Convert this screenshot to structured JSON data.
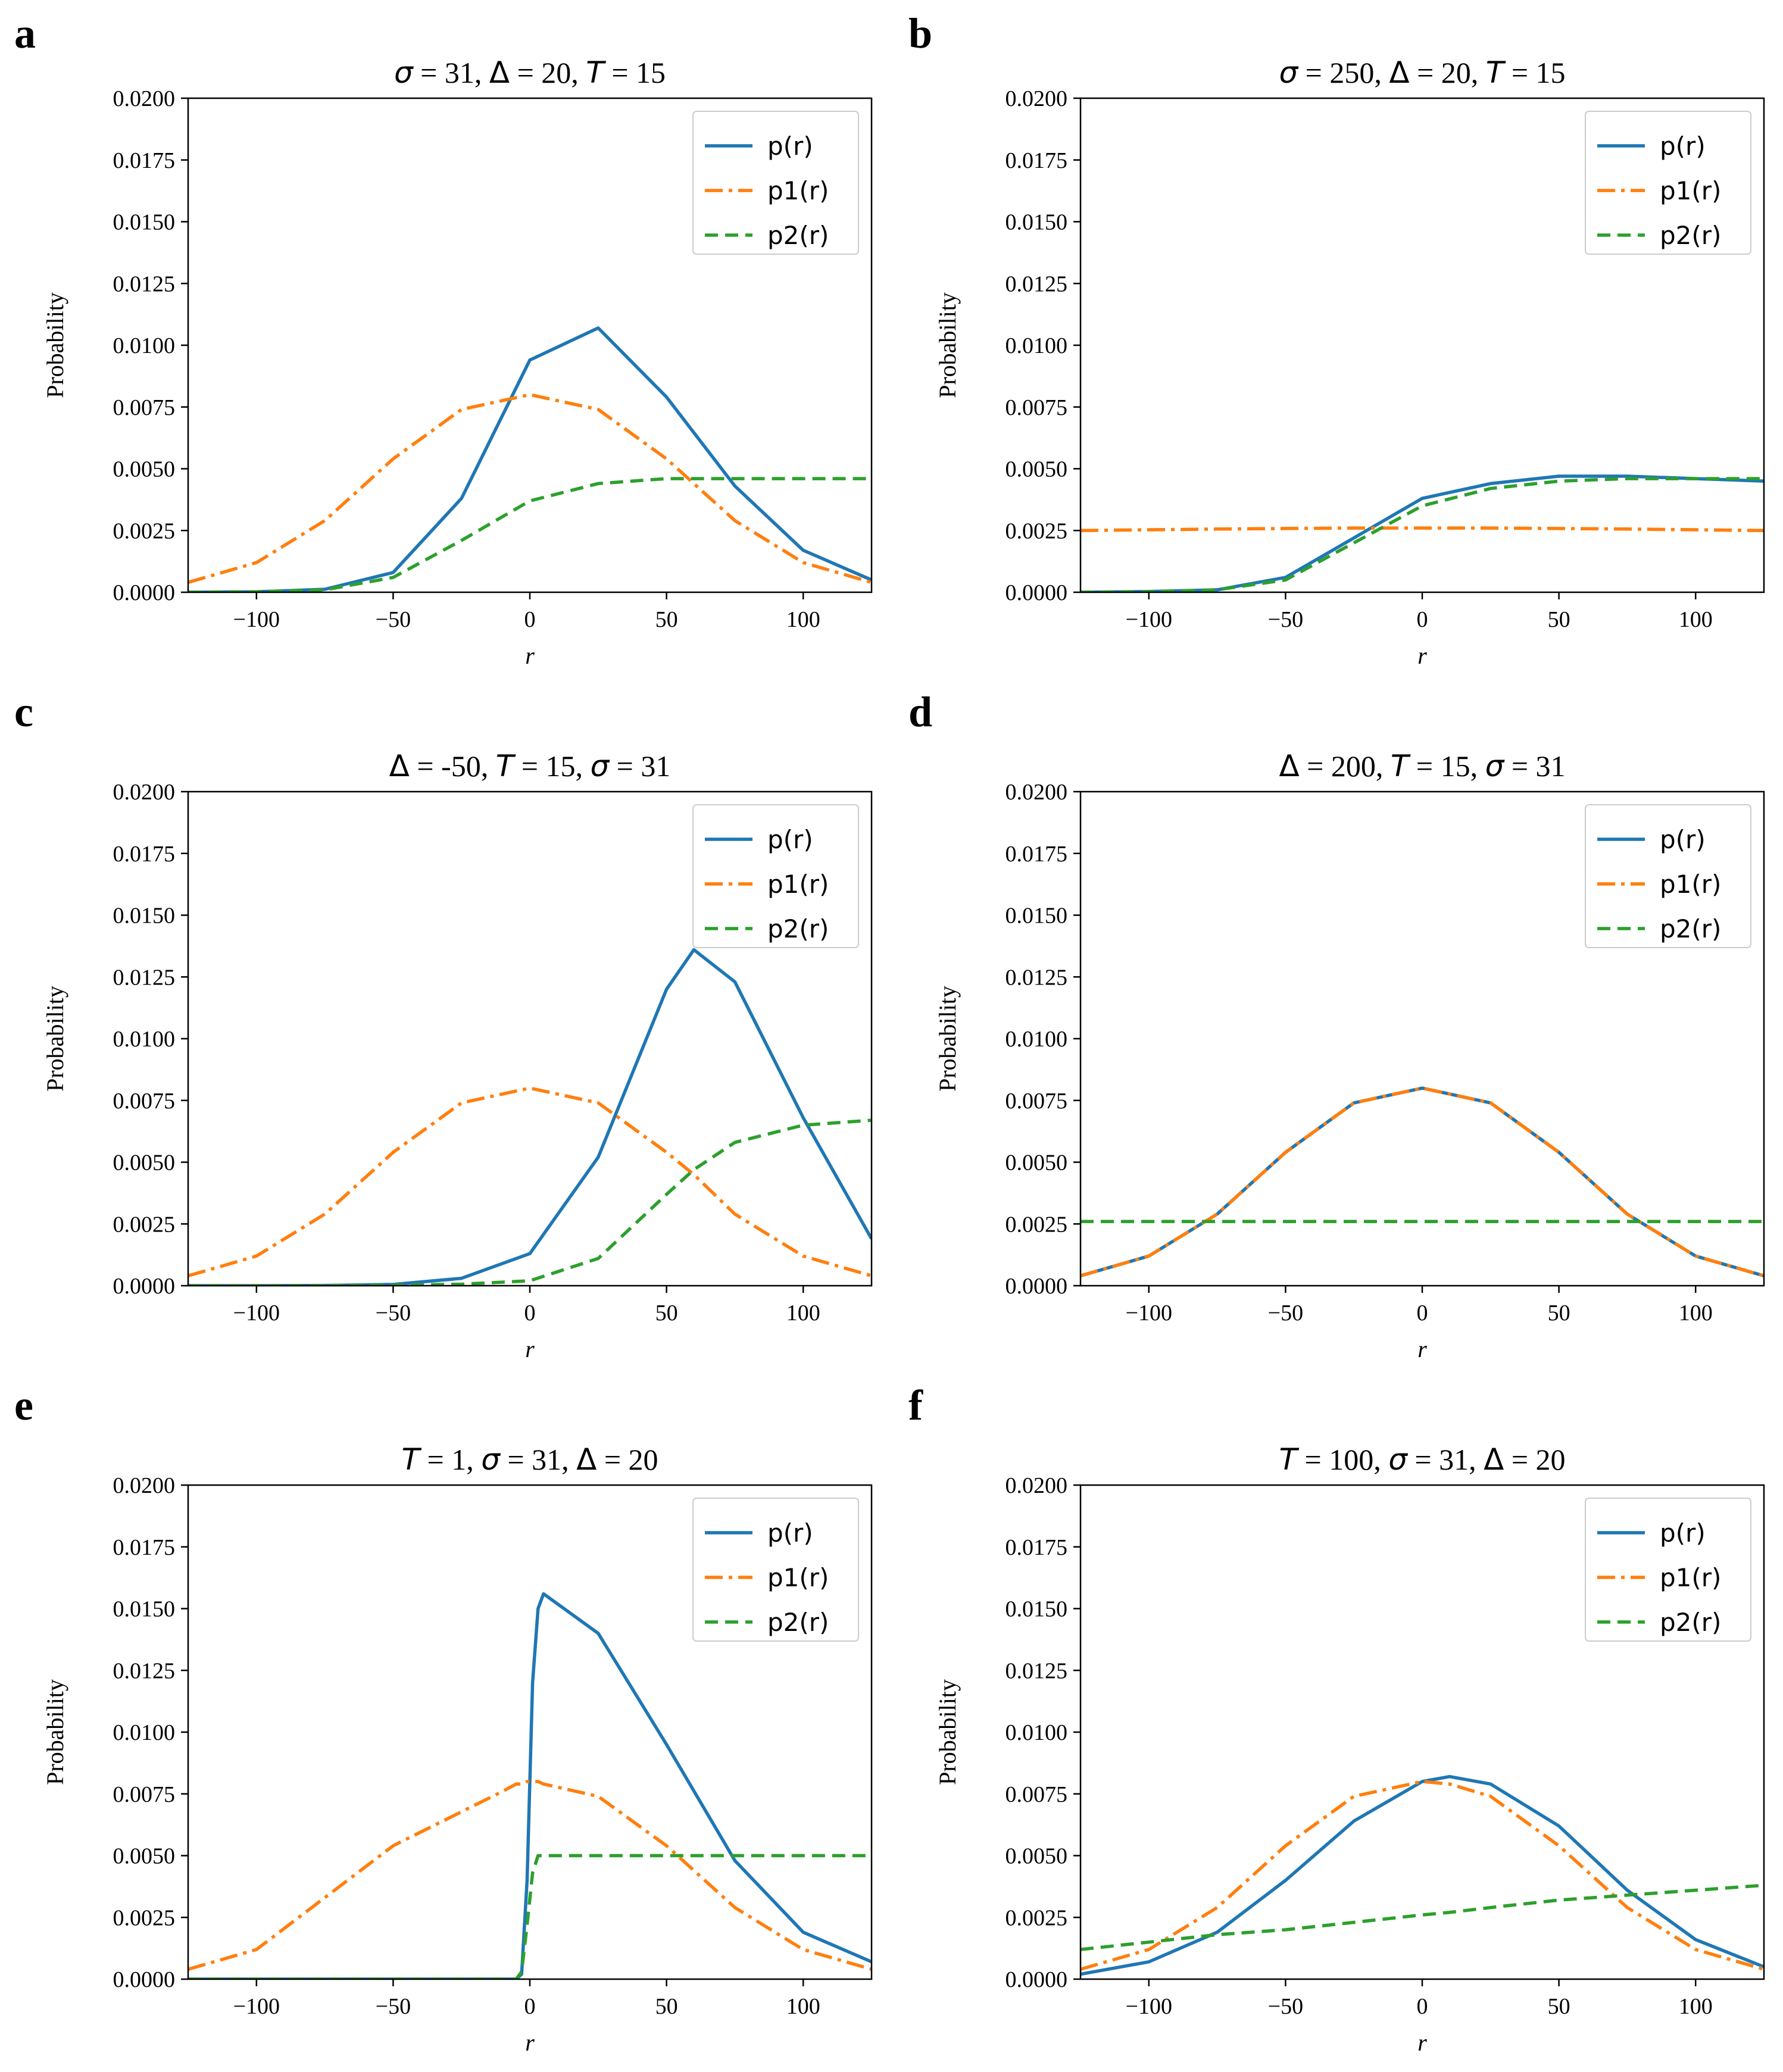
{
  "figure": {
    "series_styles": [
      {
        "key": "p",
        "color": "#1f77b4",
        "dash": "solid"
      },
      {
        "key": "p1",
        "color": "#ff7f0e",
        "dash": "dashdot"
      },
      {
        "key": "p2",
        "color": "#2ca02c",
        "dash": "dashed"
      }
    ]
  },
  "chart_data": [
    {
      "panel": "a",
      "type": "line",
      "title_parts": [
        {
          "text": "σ",
          "style": "it"
        },
        {
          "text": " = 31, "
        },
        {
          "text": "Δ",
          "style": "sym"
        },
        {
          "text": " = 20, "
        },
        {
          "text": "T",
          "style": "it"
        },
        {
          "text": " = 15"
        }
      ],
      "xlabel": "r",
      "ylabel": "Probability",
      "xlim": [
        -125,
        125
      ],
      "ylim": [
        0,
        0.02
      ],
      "xticks": [
        -100,
        -50,
        0,
        50,
        100
      ],
      "xtick_labels": [
        "−100",
        "−50",
        "0",
        "50",
        "100"
      ],
      "yticks": [
        0,
        0.0025,
        0.005,
        0.0075,
        0.01,
        0.0125,
        0.015,
        0.0175,
        0.02
      ],
      "ytick_labels": [
        "0.0000",
        "0.0025",
        "0.0050",
        "0.0075",
        "0.0100",
        "0.0125",
        "0.0150",
        "0.0175",
        "0.0200"
      ],
      "legend": {
        "position": "upper right",
        "entries": [
          "p(r)",
          "p1(r)",
          "p2(r)"
        ]
      },
      "x": [
        -125,
        -100,
        -75,
        -50,
        -25,
        0,
        25,
        50,
        75,
        100,
        125
      ],
      "series": [
        {
          "name": "p(r)",
          "values": [
            0.0,
            2e-05,
            0.00012,
            0.0008,
            0.0038,
            0.0094,
            0.0107,
            0.0079,
            0.0043,
            0.0017,
            0.0005
          ]
        },
        {
          "name": "p1(r)",
          "values": [
            0.0004,
            0.0012,
            0.0029,
            0.0054,
            0.0074,
            0.008,
            0.0074,
            0.0054,
            0.0029,
            0.0012,
            0.0004
          ]
        },
        {
          "name": "p2(r)",
          "values": [
            0.0,
            2e-05,
            0.0001,
            0.0006,
            0.0021,
            0.0037,
            0.0044,
            0.0046,
            0.0046,
            0.0046,
            0.0046
          ]
        }
      ]
    },
    {
      "panel": "b",
      "type": "line",
      "title_parts": [
        {
          "text": "σ",
          "style": "it"
        },
        {
          "text": " = 250, "
        },
        {
          "text": "Δ",
          "style": "sym"
        },
        {
          "text": " = 20, "
        },
        {
          "text": "T",
          "style": "it"
        },
        {
          "text": " = 15"
        }
      ],
      "xlabel": "r",
      "ylabel": "Probability",
      "xlim": [
        -125,
        125
      ],
      "ylim": [
        0,
        0.02
      ],
      "xticks": [
        -100,
        -50,
        0,
        50,
        100
      ],
      "xtick_labels": [
        "−100",
        "−50",
        "0",
        "50",
        "100"
      ],
      "yticks": [
        0,
        0.0025,
        0.005,
        0.0075,
        0.01,
        0.0125,
        0.015,
        0.0175,
        0.02
      ],
      "ytick_labels": [
        "0.0000",
        "0.0025",
        "0.0050",
        "0.0075",
        "0.0100",
        "0.0125",
        "0.0150",
        "0.0175",
        "0.0200"
      ],
      "legend": {
        "position": "upper right",
        "entries": [
          "p(r)",
          "p1(r)",
          "p2(r)"
        ]
      },
      "x": [
        -125,
        -100,
        -75,
        -50,
        -25,
        0,
        25,
        50,
        75,
        100,
        125
      ],
      "series": [
        {
          "name": "p(r)",
          "values": [
            0.0,
            3e-05,
            0.0001,
            0.0006,
            0.0022,
            0.0038,
            0.0044,
            0.0047,
            0.0047,
            0.0046,
            0.0045
          ]
        },
        {
          "name": "p1(r)",
          "values": [
            0.0025,
            0.00253,
            0.00256,
            0.00258,
            0.0026,
            0.0026,
            0.0026,
            0.00258,
            0.00256,
            0.00253,
            0.0025
          ]
        },
        {
          "name": "p2(r)",
          "values": [
            0.0,
            2e-05,
            0.0001,
            0.0005,
            0.002,
            0.0035,
            0.0042,
            0.0045,
            0.0046,
            0.0046,
            0.0046
          ]
        }
      ]
    },
    {
      "panel": "c",
      "type": "line",
      "title_parts": [
        {
          "text": "Δ",
          "style": "sym"
        },
        {
          "text": " = -50, "
        },
        {
          "text": "T",
          "style": "it"
        },
        {
          "text": " = 15, "
        },
        {
          "text": "σ",
          "style": "it"
        },
        {
          "text": " = 31"
        }
      ],
      "xlabel": "r",
      "ylabel": "Probability",
      "xlim": [
        -125,
        125
      ],
      "ylim": [
        0,
        0.02
      ],
      "xticks": [
        -100,
        -50,
        0,
        50,
        100
      ],
      "xtick_labels": [
        "−100",
        "−50",
        "0",
        "50",
        "100"
      ],
      "yticks": [
        0,
        0.0025,
        0.005,
        0.0075,
        0.01,
        0.0125,
        0.015,
        0.0175,
        0.02
      ],
      "ytick_labels": [
        "0.0000",
        "0.0025",
        "0.0050",
        "0.0075",
        "0.0100",
        "0.0125",
        "0.0150",
        "0.0175",
        "0.0200"
      ],
      "legend": {
        "position": "upper right",
        "entries": [
          "p(r)",
          "p1(r)",
          "p2(r)"
        ]
      },
      "x": [
        -125,
        -100,
        -75,
        -50,
        -25,
        0,
        25,
        50,
        60,
        75,
        100,
        125
      ],
      "series": [
        {
          "name": "p(r)",
          "values": [
            0.0,
            0.0,
            1e-05,
            5e-05,
            0.0003,
            0.0013,
            0.0052,
            0.012,
            0.0136,
            0.0123,
            0.0068,
            0.0019
          ]
        },
        {
          "name": "p1(r)",
          "values": [
            0.0004,
            0.0012,
            0.0029,
            0.0054,
            0.0074,
            0.008,
            0.0074,
            0.0054,
            0.0045,
            0.0029,
            0.0012,
            0.0004
          ]
        },
        {
          "name": "p2(r)",
          "values": [
            0.0,
            0.0,
            0.0,
            2e-05,
            6e-05,
            0.0002,
            0.0011,
            0.0037,
            0.0047,
            0.0058,
            0.0065,
            0.0067
          ]
        }
      ]
    },
    {
      "panel": "d",
      "type": "line",
      "title_parts": [
        {
          "text": "Δ",
          "style": "sym"
        },
        {
          "text": " = 200, "
        },
        {
          "text": "T",
          "style": "it"
        },
        {
          "text": " = 15, "
        },
        {
          "text": "σ",
          "style": "it"
        },
        {
          "text": " = 31"
        }
      ],
      "xlabel": "r",
      "ylabel": "Probability",
      "xlim": [
        -125,
        125
      ],
      "ylim": [
        0,
        0.02
      ],
      "xticks": [
        -100,
        -50,
        0,
        50,
        100
      ],
      "xtick_labels": [
        "−100",
        "−50",
        "0",
        "50",
        "100"
      ],
      "yticks": [
        0,
        0.0025,
        0.005,
        0.0075,
        0.01,
        0.0125,
        0.015,
        0.0175,
        0.02
      ],
      "ytick_labels": [
        "0.0000",
        "0.0025",
        "0.0050",
        "0.0075",
        "0.0100",
        "0.0125",
        "0.0150",
        "0.0175",
        "0.0200"
      ],
      "legend": {
        "position": "upper right",
        "entries": [
          "p(r)",
          "p1(r)",
          "p2(r)"
        ]
      },
      "x": [
        -125,
        -100,
        -75,
        -50,
        -25,
        0,
        25,
        50,
        75,
        100,
        125
      ],
      "series": [
        {
          "name": "p(r)",
          "values": [
            0.0004,
            0.0012,
            0.0029,
            0.0054,
            0.0074,
            0.008,
            0.0074,
            0.0054,
            0.0029,
            0.0012,
            0.0004
          ]
        },
        {
          "name": "p1(r)",
          "values": [
            0.0004,
            0.0012,
            0.0029,
            0.0054,
            0.0074,
            0.008,
            0.0074,
            0.0054,
            0.0029,
            0.0012,
            0.0004
          ]
        },
        {
          "name": "p2(r)",
          "values": [
            0.0026,
            0.0026,
            0.0026,
            0.0026,
            0.0026,
            0.0026,
            0.0026,
            0.0026,
            0.0026,
            0.0026,
            0.0026
          ]
        }
      ]
    },
    {
      "panel": "e",
      "type": "line",
      "title_parts": [
        {
          "text": "T",
          "style": "it"
        },
        {
          "text": " = 1, "
        },
        {
          "text": "σ",
          "style": "it"
        },
        {
          "text": " = 31, "
        },
        {
          "text": "Δ",
          "style": "sym"
        },
        {
          "text": " = 20"
        }
      ],
      "xlabel": "r",
      "ylabel": "Probability",
      "xlim": [
        -125,
        125
      ],
      "ylim": [
        0,
        0.02
      ],
      "xticks": [
        -100,
        -50,
        0,
        50,
        100
      ],
      "xtick_labels": [
        "−100",
        "−50",
        "0",
        "50",
        "100"
      ],
      "yticks": [
        0,
        0.0025,
        0.005,
        0.0075,
        0.01,
        0.0125,
        0.015,
        0.0175,
        0.02
      ],
      "ytick_labels": [
        "0.0000",
        "0.0025",
        "0.0050",
        "0.0075",
        "0.0100",
        "0.0125",
        "0.0150",
        "0.0175",
        "0.0200"
      ],
      "legend": {
        "position": "upper right",
        "entries": [
          "p(r)",
          "p1(r)",
          "p2(r)"
        ]
      },
      "x": [
        -125,
        -100,
        -50,
        -10,
        -5,
        -3,
        -1,
        1,
        3,
        5,
        25,
        50,
        75,
        100,
        125
      ],
      "series": [
        {
          "name": "p(r)",
          "values": [
            0.0,
            0.0,
            0.0,
            0.0,
            0.0,
            0.0002,
            0.004,
            0.012,
            0.015,
            0.0156,
            0.014,
            0.0095,
            0.0048,
            0.0019,
            0.0007
          ]
        },
        {
          "name": "p1(r)",
          "values": [
            0.0004,
            0.0012,
            0.0054,
            0.0076,
            0.0079,
            0.0079,
            0.008,
            0.008,
            0.008,
            0.0079,
            0.0074,
            0.0054,
            0.0029,
            0.0012,
            0.0004
          ]
        },
        {
          "name": "p2(r)",
          "values": [
            0.0,
            0.0,
            0.0,
            0.0,
            0.0,
            0.0003,
            0.0022,
            0.0043,
            0.005,
            0.005,
            0.005,
            0.005,
            0.005,
            0.005,
            0.005
          ]
        }
      ]
    },
    {
      "panel": "f",
      "type": "line",
      "title_parts": [
        {
          "text": "T",
          "style": "it"
        },
        {
          "text": " = 100, "
        },
        {
          "text": "σ",
          "style": "it"
        },
        {
          "text": " = 31, "
        },
        {
          "text": "Δ",
          "style": "sym"
        },
        {
          "text": " = 20"
        }
      ],
      "xlabel": "r",
      "ylabel": "Probability",
      "xlim": [
        -125,
        125
      ],
      "ylim": [
        0,
        0.02
      ],
      "xticks": [
        -100,
        -50,
        0,
        50,
        100
      ],
      "xtick_labels": [
        "−100",
        "−50",
        "0",
        "50",
        "100"
      ],
      "yticks": [
        0,
        0.0025,
        0.005,
        0.0075,
        0.01,
        0.0125,
        0.015,
        0.0175,
        0.02
      ],
      "ytick_labels": [
        "0.0000",
        "0.0025",
        "0.0050",
        "0.0075",
        "0.0100",
        "0.0125",
        "0.0150",
        "0.0175",
        "0.0200"
      ],
      "legend": {
        "position": "upper right",
        "entries": [
          "p(r)",
          "p1(r)",
          "p2(r)"
        ]
      },
      "x": [
        -125,
        -100,
        -75,
        -50,
        -25,
        0,
        10,
        25,
        50,
        75,
        100,
        125
      ],
      "series": [
        {
          "name": "p(r)",
          "values": [
            0.0002,
            0.0007,
            0.0019,
            0.004,
            0.0064,
            0.008,
            0.0082,
            0.0079,
            0.0062,
            0.0036,
            0.0016,
            0.0005
          ]
        },
        {
          "name": "p1(r)",
          "values": [
            0.0004,
            0.0012,
            0.0029,
            0.0054,
            0.0074,
            0.008,
            0.0079,
            0.0074,
            0.0054,
            0.0029,
            0.0012,
            0.0004
          ]
        },
        {
          "name": "p2(r)",
          "values": [
            0.0012,
            0.0015,
            0.0018,
            0.002,
            0.0023,
            0.0026,
            0.0027,
            0.0029,
            0.0032,
            0.0034,
            0.0036,
            0.0038
          ]
        }
      ]
    }
  ]
}
